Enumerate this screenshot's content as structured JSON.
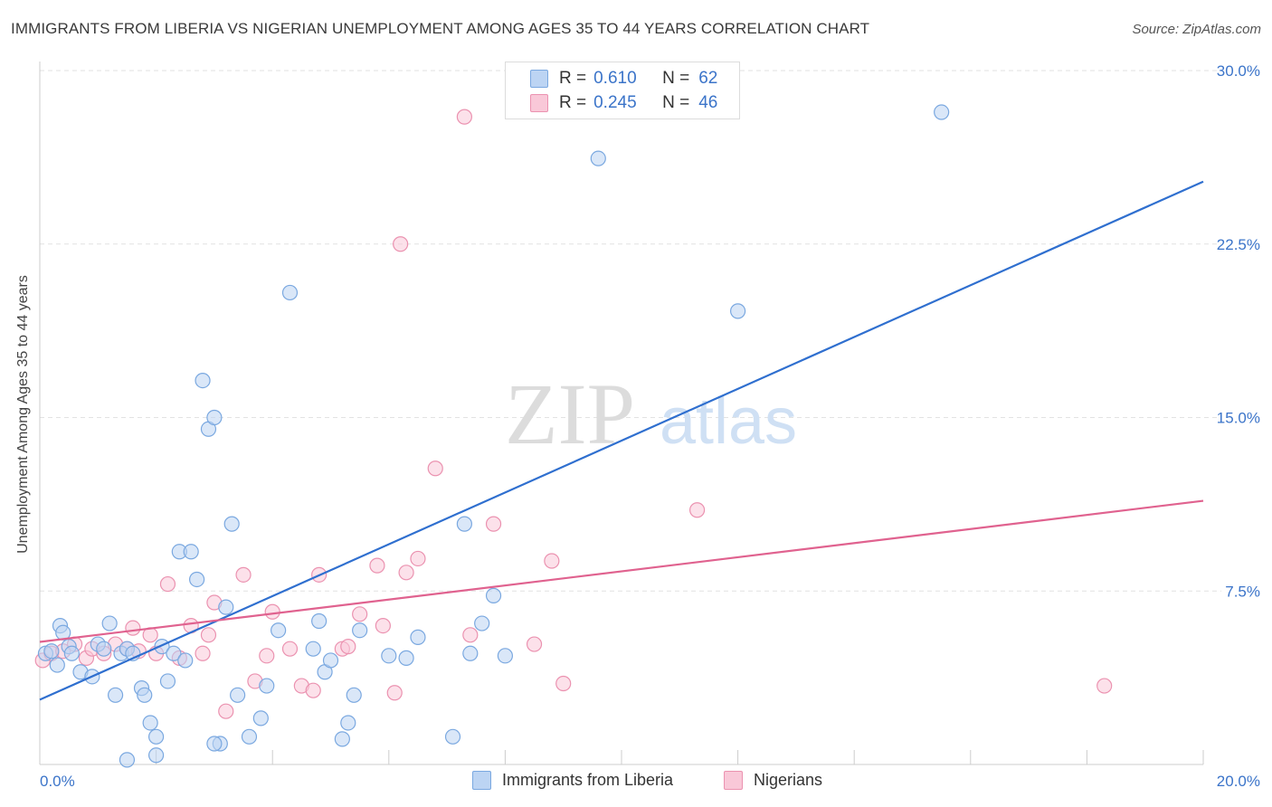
{
  "title": "IMMIGRANTS FROM LIBERIA VS NIGERIAN UNEMPLOYMENT AMONG AGES 35 TO 44 YEARS CORRELATION CHART",
  "source": "Source: ZipAtlas.com",
  "watermark": {
    "zip": "ZIP",
    "atlas": "atlas"
  },
  "legend": {
    "r_label": "R =",
    "n_label": "N =",
    "rows": [
      {
        "r": "0.610",
        "n": "62"
      },
      {
        "r": "0.245",
        "n": "46"
      }
    ]
  },
  "colors": {
    "blue_fill": "#bcd4f3",
    "blue_stroke": "#7aa8e0",
    "blue_line": "#2f6fcf",
    "pink_fill": "#f9c8d8",
    "pink_stroke": "#eb92b0",
    "pink_line": "#e0628f",
    "axis_text": "#3b74c9",
    "grid": "#e2e2e2"
  },
  "chart_data": {
    "type": "scatter",
    "title": "IMMIGRANTS FROM LIBERIA VS NIGERIAN UNEMPLOYMENT AMONG AGES 35 TO 44 YEARS CORRELATION CHART",
    "xlabel": "",
    "ylabel": "Unemployment Among Ages 35 to 44 years",
    "xlim": [
      0,
      20
    ],
    "ylim": [
      0,
      30
    ],
    "x_tick_labels": [
      "0.0%",
      "20.0%"
    ],
    "y_ticks": [
      7.5,
      15.0,
      22.5,
      30.0
    ],
    "y_tick_labels": [
      "7.5%",
      "15.0%",
      "22.5%",
      "30.0%"
    ],
    "grid": true,
    "legend_position": "bottom",
    "series": [
      {
        "name": "Immigrants from Liberia",
        "color": "#7aa8e0",
        "trend": {
          "x": [
            0,
            20
          ],
          "y": [
            2.8,
            25.2
          ]
        },
        "points": [
          [
            0.1,
            4.8
          ],
          [
            0.2,
            4.9
          ],
          [
            0.3,
            4.3
          ],
          [
            0.35,
            6.0
          ],
          [
            0.4,
            5.7
          ],
          [
            0.5,
            5.1
          ],
          [
            0.55,
            4.8
          ],
          [
            0.7,
            4.0
          ],
          [
            0.9,
            3.8
          ],
          [
            1.0,
            5.2
          ],
          [
            1.1,
            5.0
          ],
          [
            1.2,
            6.1
          ],
          [
            1.3,
            3.0
          ],
          [
            1.4,
            4.8
          ],
          [
            1.5,
            5.0
          ],
          [
            1.6,
            4.8
          ],
          [
            1.75,
            3.3
          ],
          [
            1.8,
            3.0
          ],
          [
            1.9,
            1.8
          ],
          [
            2.0,
            1.2
          ],
          [
            2.1,
            5.1
          ],
          [
            2.2,
            3.6
          ],
          [
            2.3,
            4.8
          ],
          [
            2.4,
            9.2
          ],
          [
            2.5,
            4.5
          ],
          [
            2.6,
            9.2
          ],
          [
            2.7,
            8.0
          ],
          [
            2.8,
            16.6
          ],
          [
            2.9,
            14.5
          ],
          [
            3.0,
            15.0
          ],
          [
            3.1,
            0.9
          ],
          [
            3.2,
            6.8
          ],
          [
            3.3,
            10.4
          ],
          [
            3.4,
            3.0
          ],
          [
            3.6,
            1.2
          ],
          [
            3.8,
            2.0
          ],
          [
            3.9,
            3.4
          ],
          [
            4.1,
            5.8
          ],
          [
            4.3,
            20.4
          ],
          [
            4.7,
            5.0
          ],
          [
            4.8,
            6.2
          ],
          [
            4.9,
            4.0
          ],
          [
            5.0,
            4.5
          ],
          [
            5.2,
            1.1
          ],
          [
            5.3,
            1.8
          ],
          [
            5.4,
            3.0
          ],
          [
            5.5,
            5.8
          ],
          [
            6.0,
            4.7
          ],
          [
            6.3,
            4.6
          ],
          [
            6.5,
            5.5
          ],
          [
            7.1,
            1.2
          ],
          [
            7.3,
            10.4
          ],
          [
            7.4,
            4.8
          ],
          [
            7.6,
            6.1
          ],
          [
            7.8,
            7.3
          ],
          [
            8.0,
            4.7
          ],
          [
            9.6,
            26.2
          ],
          [
            12.0,
            19.6
          ],
          [
            15.5,
            28.2
          ],
          [
            1.5,
            0.2
          ],
          [
            2.0,
            0.4
          ],
          [
            3.0,
            0.9
          ]
        ]
      },
      {
        "name": "Nigerians",
        "color": "#eb92b0",
        "trend": {
          "x": [
            0,
            20
          ],
          "y": [
            5.3,
            11.4
          ]
        },
        "points": [
          [
            0.05,
            4.5
          ],
          [
            0.2,
            4.8
          ],
          [
            0.4,
            4.9
          ],
          [
            0.6,
            5.2
          ],
          [
            0.8,
            4.6
          ],
          [
            0.9,
            5.0
          ],
          [
            1.1,
            4.8
          ],
          [
            1.3,
            5.2
          ],
          [
            1.5,
            5.0
          ],
          [
            1.6,
            5.9
          ],
          [
            1.7,
            4.9
          ],
          [
            1.9,
            5.6
          ],
          [
            2.0,
            4.8
          ],
          [
            2.2,
            7.8
          ],
          [
            2.4,
            4.6
          ],
          [
            2.6,
            6.0
          ],
          [
            2.8,
            4.8
          ],
          [
            2.9,
            5.6
          ],
          [
            3.0,
            7.0
          ],
          [
            3.2,
            2.3
          ],
          [
            3.5,
            8.2
          ],
          [
            3.7,
            3.6
          ],
          [
            3.9,
            4.7
          ],
          [
            4.0,
            6.6
          ],
          [
            4.3,
            5.0
          ],
          [
            4.5,
            3.4
          ],
          [
            4.7,
            3.2
          ],
          [
            4.8,
            8.2
          ],
          [
            5.2,
            5.0
          ],
          [
            5.5,
            6.5
          ],
          [
            5.8,
            8.6
          ],
          [
            5.9,
            6.0
          ],
          [
            6.1,
            3.1
          ],
          [
            6.3,
            8.3
          ],
          [
            6.5,
            8.9
          ],
          [
            6.8,
            12.8
          ],
          [
            7.3,
            28.0
          ],
          [
            7.4,
            5.6
          ],
          [
            7.8,
            10.4
          ],
          [
            8.5,
            5.2
          ],
          [
            8.8,
            8.8
          ],
          [
            9.0,
            3.5
          ],
          [
            11.3,
            11.0
          ],
          [
            18.3,
            3.4
          ],
          [
            6.2,
            22.5
          ],
          [
            5.3,
            5.1
          ]
        ]
      }
    ]
  }
}
